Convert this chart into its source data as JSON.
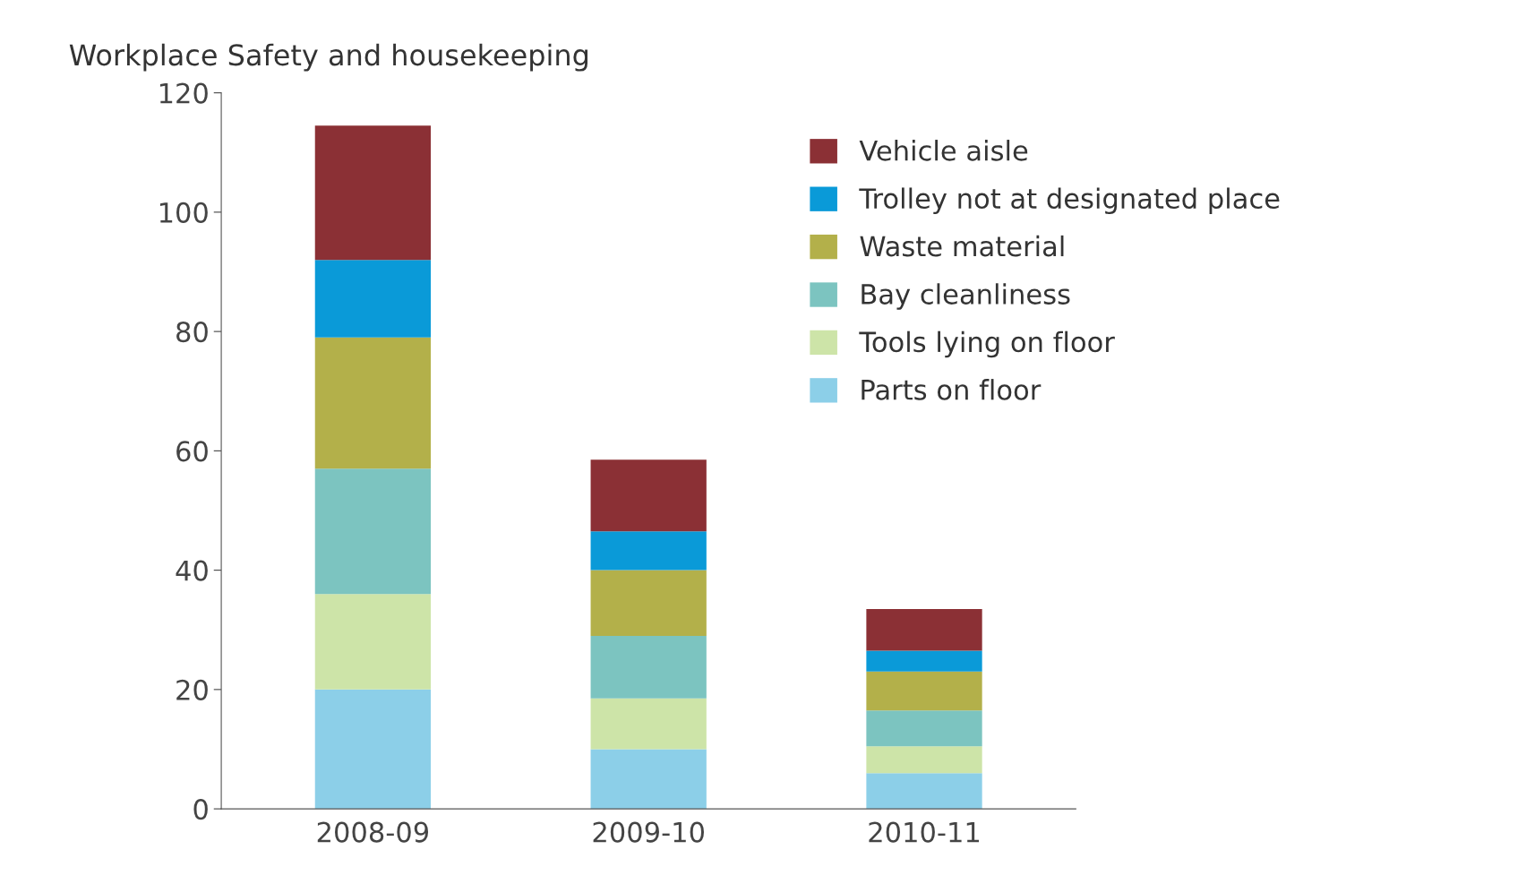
{
  "chart_data": {
    "type": "bar",
    "title": "Workplace Safety and housekeeping",
    "stacked": true,
    "categories": [
      "2008-09",
      "2009-10",
      "2010-11"
    ],
    "series": [
      {
        "name": "Parts on floor",
        "color": "#8ccfe8",
        "values": [
          20,
          10,
          6
        ]
      },
      {
        "name": "Tools lying on floor",
        "color": "#cde4a8",
        "values": [
          16,
          8.5,
          4.5
        ]
      },
      {
        "name": "Bay cleanliness",
        "color": "#7cc4c0",
        "values": [
          21,
          10.5,
          6
        ]
      },
      {
        "name": "Waste material",
        "color": "#b3b04a",
        "values": [
          22,
          11,
          6.5
        ]
      },
      {
        "name": "Trolley not at designated place",
        "color": "#0a9ad8",
        "values": [
          13,
          6.5,
          3.5
        ]
      },
      {
        "name": "Vehicle aisle",
        "color": "#8b3035",
        "values": [
          22.5,
          12,
          7
        ]
      }
    ],
    "ylim": [
      0,
      120
    ],
    "yticks": [
      0,
      20,
      40,
      60,
      80,
      100,
      120
    ],
    "grid": false,
    "legend": "top right"
  }
}
